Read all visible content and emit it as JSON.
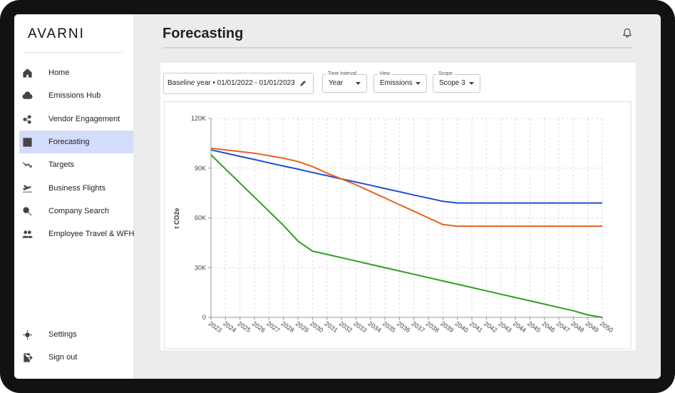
{
  "brand": "AVARNI",
  "nav": [
    "Home",
    "Emissions Hub",
    "Vendor Engagement",
    "Forecasting",
    "Targets",
    "Business Flights",
    "Company Search",
    "Employee Travel & WFH"
  ],
  "bottom_nav": [
    "Settings",
    "Sign out"
  ],
  "header": {
    "title": "Forecasting"
  },
  "controls": {
    "baseline": "Baseline year • 01/01/2022 - 01/01/2023",
    "selects": [
      {
        "label": "Time Interval",
        "value": "Year"
      },
      {
        "label": "View",
        "value": "Emissions"
      },
      {
        "label": "Scope",
        "value": "Scope 3"
      }
    ]
  },
  "chart_data": {
    "type": "line",
    "y_label": "t CO2e",
    "x": [
      2023,
      2024,
      2025,
      2026,
      2027,
      2028,
      2029,
      2030,
      2031,
      2032,
      2033,
      2034,
      2035,
      2036,
      2037,
      2038,
      2039,
      2040,
      2041,
      2042,
      2043,
      2044,
      2045,
      2046,
      2047,
      2048,
      2049,
      2050
    ],
    "xlim": [
      2023,
      2050
    ],
    "xticks": [
      2023,
      2024,
      2025,
      2026,
      2027,
      2028,
      2029,
      2030,
      2031,
      2032,
      2033,
      2034,
      2035,
      2036,
      2037,
      2038,
      2039,
      2040,
      2041,
      2042,
      2043,
      2044,
      2045,
      2046,
      2047,
      2048,
      2049,
      2050
    ],
    "ylim": [
      0,
      120000
    ],
    "yticks": [
      0,
      {
        "value": 30000,
        "label": "30K"
      },
      {
        "value": 60000,
        "label": "60K"
      },
      {
        "value": 90000,
        "label": "90K"
      },
      {
        "value": 120000,
        "label": "120K"
      }
    ],
    "grid": true,
    "series": [
      {
        "color": "#1f4fd6",
        "values": [
          101000,
          99100,
          97100,
          95200,
          93200,
          91300,
          89400,
          87400,
          85500,
          83500,
          81600,
          79700,
          77700,
          75800,
          73800,
          71900,
          70000,
          69000,
          69000,
          69000,
          69000,
          69000,
          69000,
          69000,
          69000,
          69000,
          69000,
          69000
        ]
      },
      {
        "color": "#e8601c",
        "values": [
          102000,
          101000,
          100000,
          99000,
          97500,
          96000,
          94000,
          91000,
          87000,
          83500,
          80000,
          76000,
          72000,
          68000,
          64000,
          60000,
          56000,
          55000,
          55000,
          55000,
          55000,
          55000,
          55000,
          55000,
          55000,
          55000,
          55000,
          55000
        ]
      },
      {
        "color": "#2ca01c",
        "values": [
          98000,
          89500,
          81000,
          72500,
          64000,
          55500,
          46000,
          40000,
          38000,
          36000,
          34000,
          32000,
          30000,
          28000,
          26000,
          24000,
          22000,
          20000,
          18000,
          16000,
          14000,
          12000,
          10000,
          8000,
          6000,
          4000,
          1500,
          0
        ]
      }
    ]
  }
}
